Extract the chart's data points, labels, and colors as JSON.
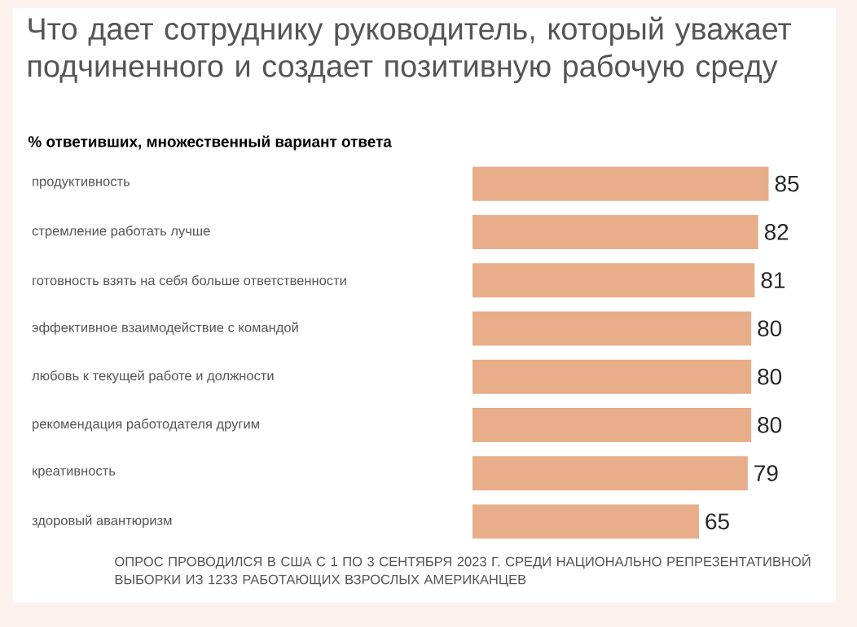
{
  "chart_data": {
    "type": "bar",
    "orientation": "horizontal",
    "title": "Что дает сотруднику руководитель, который уважает подчиненного и создает позитивную рабочую среду",
    "subtitle": "% ответивших, множественный вариант ответа",
    "categories": [
      "продуктивность",
      "стремление работать лучше",
      "готовность взять на себя больше ответственности",
      "эффективное взаимодействие с командой",
      "любовь к текущей работе и должности",
      "рекомендация работодателя другим",
      "креативность",
      "здоровый авантюризм"
    ],
    "values": [
      85,
      82,
      81,
      80,
      80,
      80,
      79,
      65
    ],
    "color": "#e8ae8a",
    "data_labels": true,
    "annotations": [
      "ОПРОС ПРОВОДИЛСЯ В США С 1 ПО 3 СЕНТЯБРЯ 2023 Г. СРЕДИ НАЦИОНАЛЬНО РЕПРЕЗЕНТАТИВНОЙ ВЫБОРКИ ИЗ 1233 РАБОТАЮЩИХ ВЗРОСЛЫХ АМЕРИКАНЦЕВ"
    ]
  }
}
